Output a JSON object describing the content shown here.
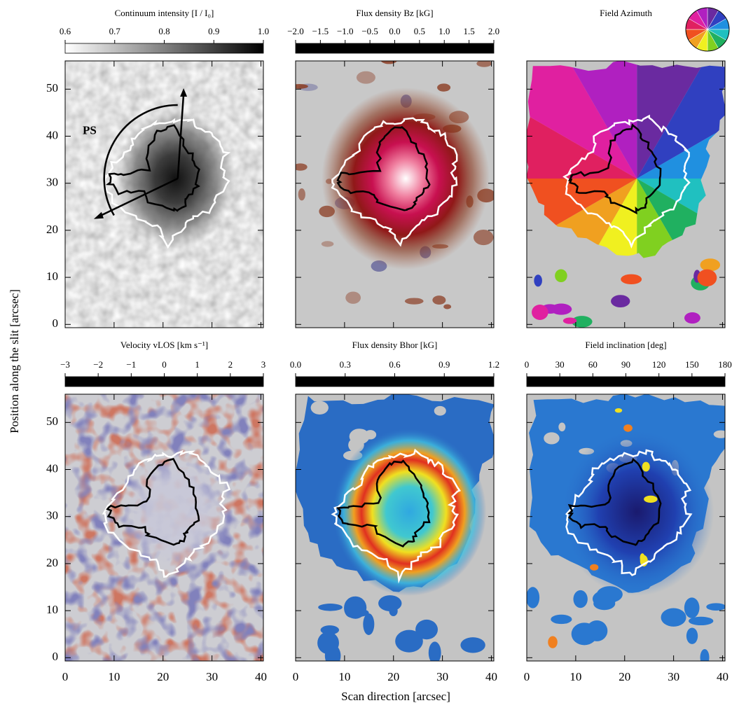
{
  "xlabel": "Scan direction   [arcsec]",
  "ylabel": "Position along the slit   [arcsec]",
  "chart_data": [
    {
      "type": "intensity",
      "title": "Continuum intensity [I / I₀]",
      "annotation": "PS",
      "colorbar": {
        "lim": [
          0.6,
          1.0
        ],
        "ticks": [
          0.6,
          0.7,
          0.8,
          0.9,
          {
            "value": 1,
            "label": "1.0"
          }
        ],
        "colors": [
          "#000000",
          "#ffffff"
        ]
      },
      "xlim": [
        0,
        40.5
      ],
      "ylim": [
        -0.7,
        56
      ],
      "xticks": [
        0,
        10,
        20,
        30,
        40
      ],
      "yticks": [
        0,
        10,
        20,
        30,
        40,
        50
      ]
    },
    {
      "type": "bz",
      "title": "Flux density  Bz  [kG]",
      "colorbar": {
        "lim": [
          -2,
          2
        ],
        "ticks": [
          {
            "value": -2,
            "label": "−2.0"
          },
          {
            "value": -1.5,
            "label": "−1.5"
          },
          {
            "value": -1,
            "label": "−1.0"
          },
          {
            "value": -0.5,
            "label": "−0.5"
          },
          {
            "value": 0,
            "label": "0.0"
          },
          0.5,
          {
            "value": 1,
            "label": "1.0"
          },
          1.5,
          {
            "value": 2,
            "label": "2.0"
          }
        ],
        "colors": [
          "#e8f0ff",
          "#3a90e0",
          "#101060",
          "#9a9ab8",
          "#e0e0e0",
          "#a05030",
          "#901010",
          "#e0206a",
          "#fff0f5"
        ]
      },
      "xlim": [
        0,
        40.5
      ],
      "ylim": [
        -0.7,
        56
      ],
      "xticks": [
        0,
        10,
        20,
        30,
        40
      ],
      "yticks": [
        0,
        10,
        20,
        30,
        40,
        50
      ]
    },
    {
      "type": "azimuth",
      "title": "Field Azimuth",
      "wheel_colors": [
        "#6a2aa0",
        "#3040c0",
        "#2090e0",
        "#20c0c0",
        "#20b060",
        "#80d020",
        "#f0f020",
        "#f0a020",
        "#f05020",
        "#e02060",
        "#e020a0",
        "#b020c0"
      ],
      "xlim": [
        0,
        40.5
      ],
      "ylim": [
        -0.7,
        56
      ],
      "xticks": [
        0,
        10,
        20,
        30,
        40
      ],
      "yticks": [
        0,
        10,
        20,
        30,
        40,
        50
      ]
    },
    {
      "type": "velocity",
      "title": "Velocity  vLOS  [km s⁻¹]",
      "colorbar": {
        "lim": [
          -3,
          3
        ],
        "ticks": [
          {
            "value": -3,
            "label": "−3"
          },
          {
            "value": -2,
            "label": "−2"
          },
          {
            "value": -1,
            "label": "−1"
          },
          0,
          1,
          2,
          3
        ],
        "colors": [
          "#e8f0ff",
          "#3a90e0",
          "#101060",
          "#9a9ab8",
          "#e0e0e0",
          "#a05030",
          "#901010",
          "#e0206a",
          "#fff0f5"
        ]
      },
      "xlim": [
        0,
        40.5
      ],
      "ylim": [
        -0.7,
        56
      ],
      "xticks": [
        0,
        10,
        20,
        30,
        40
      ],
      "yticks": [
        0,
        10,
        20,
        30,
        40,
        50
      ]
    },
    {
      "type": "bhor",
      "title": "Flux density  Bhor  [kG]",
      "colorbar": {
        "lim": [
          0,
          1.2
        ],
        "ticks": [
          {
            "value": 0,
            "label": "0.0"
          },
          0.3,
          0.6,
          0.9,
          1.2
        ],
        "colors": [
          "#1a1a6e",
          "#2050c0",
          "#20a0e0",
          "#40d0c0",
          "#f0f020",
          "#f08020",
          "#d02020",
          "#801010"
        ]
      },
      "xlim": [
        0,
        40.5
      ],
      "ylim": [
        -0.7,
        56
      ],
      "xticks": [
        0,
        10,
        20,
        30,
        40
      ],
      "yticks": [
        0,
        10,
        20,
        30,
        40,
        50
      ]
    },
    {
      "type": "inclination",
      "title": "Field inclination   [deg]",
      "colorbar": {
        "lim": [
          0,
          180
        ],
        "ticks": [
          0,
          30,
          60,
          90,
          120,
          150,
          180
        ],
        "colors": [
          "#1a1a6e",
          "#2050c0",
          "#20a0e0",
          "#40d0c0",
          "#f0f020",
          "#f08020",
          "#d02020",
          "#801010"
        ]
      },
      "xlim": [
        0,
        40.5
      ],
      "ylim": [
        -0.7,
        56
      ],
      "xticks": [
        0,
        10,
        20,
        30,
        40
      ],
      "yticks": [
        0,
        10,
        20,
        30,
        40,
        50
      ]
    }
  ]
}
